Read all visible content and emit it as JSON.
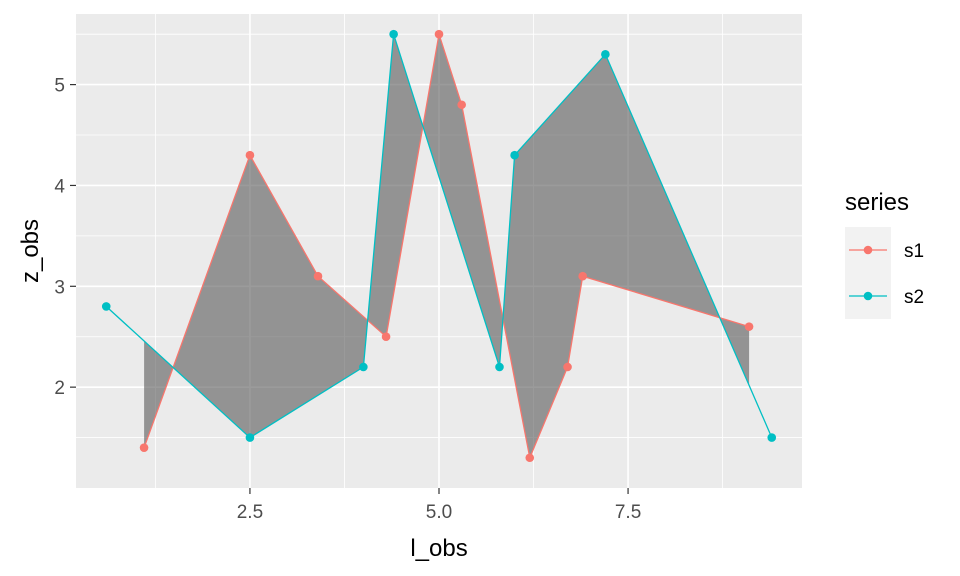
{
  "chart_data": {
    "type": "line",
    "xlabel": "l_obs",
    "ylabel": "z_obs",
    "xlim": [
      0.2,
      9.8
    ],
    "ylim": [
      1.0,
      5.7
    ],
    "x_ticks": [
      2.5,
      5.0,
      7.5
    ],
    "x_tick_labels": [
      "2.5",
      "5.0",
      "7.5"
    ],
    "y_ticks": [
      2,
      3,
      4,
      5
    ],
    "y_tick_labels": [
      "2",
      "3",
      "4",
      "5"
    ],
    "grid": true,
    "legend": {
      "title": "series",
      "position": "right"
    },
    "ribbon_color": "#595959",
    "series": [
      {
        "name": "s1",
        "color": "#F8766D",
        "x": [
          1.1,
          2.5,
          3.4,
          4.3,
          5.0,
          5.3,
          6.2,
          6.7,
          6.9,
          9.1
        ],
        "y": [
          1.4,
          4.3,
          3.1,
          2.5,
          5.5,
          4.8,
          1.3,
          2.2,
          3.1,
          2.6
        ]
      },
      {
        "name": "s2",
        "color": "#00BFC4",
        "x": [
          0.6,
          2.5,
          4.0,
          4.4,
          5.8,
          6.0,
          7.2,
          9.4
        ],
        "y": [
          2.8,
          1.5,
          2.2,
          5.5,
          2.2,
          4.3,
          5.3,
          1.5
        ]
      }
    ]
  }
}
